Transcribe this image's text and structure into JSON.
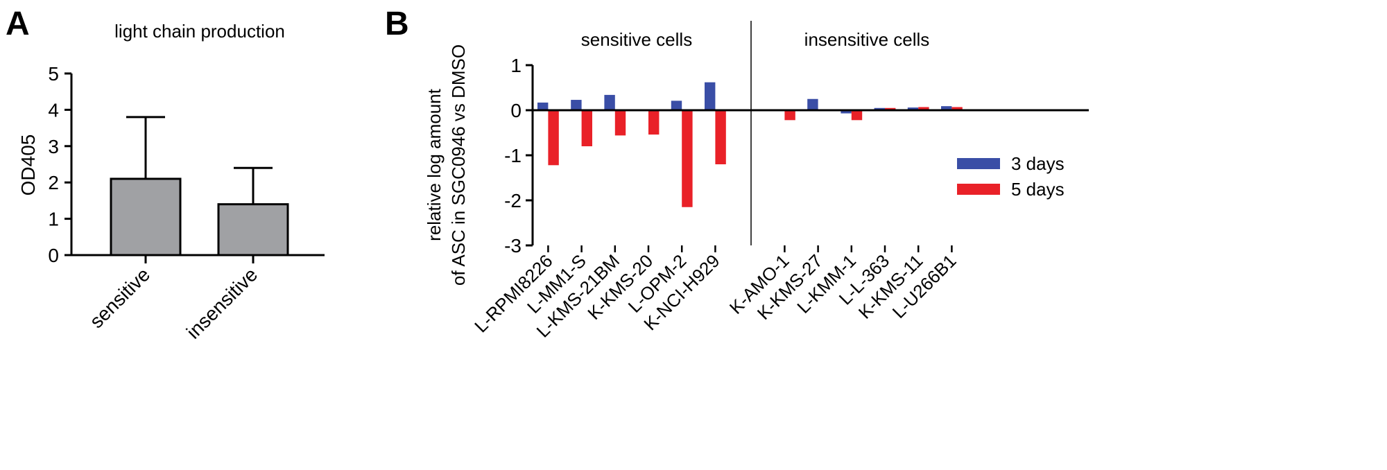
{
  "chart_data": [
    {
      "panel_label": "A",
      "type": "bar",
      "title": "light chain production",
      "ylabel": "OD405",
      "xlabel": "",
      "ylim": [
        0,
        5
      ],
      "yticks": [
        "0",
        "1",
        "2",
        "3",
        "4",
        "5"
      ],
      "categories": [
        "sensitive",
        "insensitive"
      ],
      "values": [
        2.1,
        1.4
      ],
      "error_upper": [
        3.8,
        2.4
      ],
      "bar_color": "#a0a1a4",
      "grid": false
    },
    {
      "panel_label": "B",
      "type": "bar",
      "ylabel_lines": [
        "relative log amount",
        "of ASC in SGC0946 vs DMSO"
      ],
      "ylim": [
        -3,
        1
      ],
      "yticks": [
        "-3",
        "-2",
        "-1",
        "0",
        "1"
      ],
      "group_labels": [
        "sensitive cells",
        "insensitive cells"
      ],
      "categories": [
        "L-RPMI8226",
        "L-MM1-S",
        "L-KMS-21BM",
        "K-KMS-20",
        "L-OPM-2",
        "K-NCI-H929",
        "K-AMO-1",
        "K-KMS-27",
        "L-KMM-1",
        "L-L-363",
        "K-KMS-11",
        "L-U266B1"
      ],
      "series": [
        {
          "name": "3 days",
          "color": "#3a4ea6",
          "values": [
            0.17,
            0.23,
            0.34,
            0.0,
            0.21,
            0.62,
            0.0,
            0.25,
            -0.07,
            0.05,
            0.06,
            0.09
          ]
        },
        {
          "name": "5 days",
          "color": "#e92128",
          "values": [
            -1.22,
            -0.8,
            -0.56,
            -0.54,
            -2.15,
            -1.2,
            -0.22,
            -0.02,
            -0.22,
            0.05,
            0.07,
            0.07
          ]
        }
      ],
      "legend_position": "right",
      "grid": false
    }
  ]
}
